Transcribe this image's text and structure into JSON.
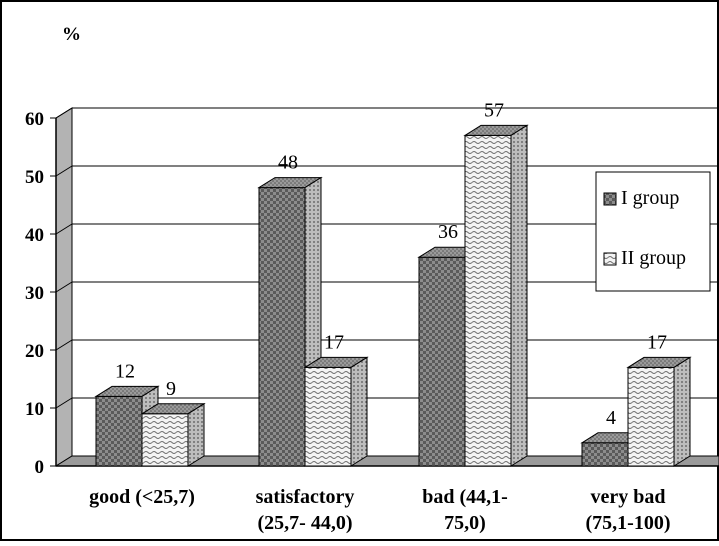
{
  "chart_data": {
    "type": "bar",
    "style": "3d-clustered",
    "ylabel": "%",
    "ylim": [
      0,
      60
    ],
    "yticks": [
      0,
      10,
      20,
      30,
      40,
      50,
      60
    ],
    "grid": true,
    "legend_position": "right",
    "categories": [
      [
        "good (<25,7)"
      ],
      [
        "satisfactory",
        "(25,7- 44,0)"
      ],
      [
        "bad (44,1-",
        "75,0)"
      ],
      [
        "very bad",
        "(75,1-100)"
      ]
    ],
    "series": [
      {
        "name": "I group",
        "values": [
          12,
          48,
          36,
          4
        ],
        "color": "#8f8f8f"
      },
      {
        "name": "II group",
        "values": [
          9,
          17,
          57,
          17
        ],
        "color": "#eeeeee"
      }
    ]
  }
}
